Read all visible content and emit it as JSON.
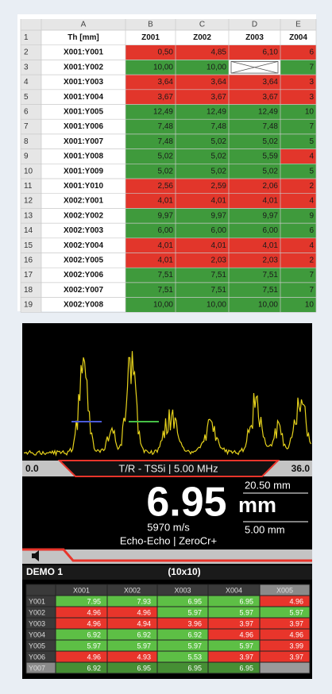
{
  "sheet": {
    "column_letters": [
      "A",
      "B",
      "C",
      "D",
      "E"
    ],
    "row_numbers": [
      "1",
      "2",
      "3",
      "4",
      "5",
      "6",
      "7",
      "8",
      "9",
      "10",
      "11",
      "12",
      "13",
      "14",
      "15",
      "16",
      "17",
      "18",
      "19"
    ],
    "header": [
      "Th [mm]",
      "Z001",
      "Z002",
      "Z003",
      "Z004"
    ],
    "palette": {
      "red": "#e2362b",
      "green": "#3f9a3c"
    },
    "rows": [
      {
        "label": "X001:Y001",
        "values": [
          "0,50",
          "4,85",
          "6,10",
          "6"
        ],
        "fill": [
          "red",
          "red",
          "red",
          "red"
        ]
      },
      {
        "label": "X001:Y002",
        "values": [
          "10,00",
          "10,00",
          null,
          "7"
        ],
        "fill": [
          "green",
          "green",
          "crossed",
          "green"
        ]
      },
      {
        "label": "X001:Y003",
        "values": [
          "3,64",
          "3,64",
          "3,64",
          "3"
        ],
        "fill": [
          "red",
          "red",
          "red",
          "red"
        ]
      },
      {
        "label": "X001:Y004",
        "values": [
          "3,67",
          "3,67",
          "3,67",
          "3"
        ],
        "fill": [
          "red",
          "red",
          "red",
          "red"
        ]
      },
      {
        "label": "X001:Y005",
        "values": [
          "12,49",
          "12,49",
          "12,49",
          "10"
        ],
        "fill": [
          "green",
          "green",
          "green",
          "green"
        ]
      },
      {
        "label": "X001:Y006",
        "values": [
          "7,48",
          "7,48",
          "7,48",
          "7"
        ],
        "fill": [
          "green",
          "green",
          "green",
          "green"
        ]
      },
      {
        "label": "X001:Y007",
        "values": [
          "7,48",
          "5,02",
          "5,02",
          "5"
        ],
        "fill": [
          "green",
          "green",
          "green",
          "green"
        ]
      },
      {
        "label": "X001:Y008",
        "values": [
          "5,02",
          "5,02",
          "5,59",
          "4"
        ],
        "fill": [
          "green",
          "green",
          "green",
          "red"
        ]
      },
      {
        "label": "X001:Y009",
        "values": [
          "5,02",
          "5,02",
          "5,02",
          "5"
        ],
        "fill": [
          "green",
          "green",
          "green",
          "green"
        ]
      },
      {
        "label": "X001:Y010",
        "values": [
          "2,56",
          "2,59",
          "2,06",
          "2"
        ],
        "fill": [
          "red",
          "red",
          "red",
          "red"
        ]
      },
      {
        "label": "X002:Y001",
        "values": [
          "4,01",
          "4,01",
          "4,01",
          "4"
        ],
        "fill": [
          "red",
          "red",
          "red",
          "red"
        ]
      },
      {
        "label": "X002:Y002",
        "values": [
          "9,97",
          "9,97",
          "9,97",
          "9"
        ],
        "fill": [
          "green",
          "green",
          "green",
          "green"
        ]
      },
      {
        "label": "X002:Y003",
        "values": [
          "6,00",
          "6,00",
          "6,00",
          "6"
        ],
        "fill": [
          "green",
          "green",
          "green",
          "green"
        ]
      },
      {
        "label": "X002:Y004",
        "values": [
          "4,01",
          "4,01",
          "4,01",
          "4"
        ],
        "fill": [
          "red",
          "red",
          "red",
          "red"
        ]
      },
      {
        "label": "X002:Y005",
        "values": [
          "4,01",
          "2,03",
          "2,03",
          "2"
        ],
        "fill": [
          "red",
          "red",
          "red",
          "red"
        ]
      },
      {
        "label": "X002:Y006",
        "values": [
          "7,51",
          "7,51",
          "7,51",
          "7"
        ],
        "fill": [
          "green",
          "green",
          "green",
          "green"
        ]
      },
      {
        "label": "X002:Y007",
        "values": [
          "7,51",
          "7,51",
          "7,51",
          "7"
        ],
        "fill": [
          "green",
          "green",
          "green",
          "green"
        ]
      },
      {
        "label": "X002:Y008",
        "values": [
          "10,00",
          "10,00",
          "10,00",
          "10"
        ],
        "fill": [
          "green",
          "green",
          "green",
          "green"
        ]
      }
    ]
  },
  "device": {
    "range_start": "0.0",
    "range_end": "36.0",
    "probe": "T/R - TS5i | 5.00 MHz",
    "reading": "6.95",
    "unit": "mm",
    "gate_a": "20.50 mm",
    "gate_b": "5.00 mm",
    "velocity": "5970 m/s",
    "mode": "Echo-Echo | ZeroCr+",
    "file": "DEMO 1",
    "grid_size": "(10x10)",
    "palette": {
      "red": "#e8352b",
      "green": "#5dbf45"
    },
    "columns": [
      "X001",
      "X002",
      "X003",
      "X004",
      "X005"
    ],
    "rows": [
      {
        "label": "Y001",
        "values": [
          "7.95",
          "7.93",
          "6.95",
          "6.95",
          "4.96"
        ],
        "fill": [
          "green",
          "green",
          "green",
          "green",
          "red"
        ]
      },
      {
        "label": "Y002",
        "values": [
          "4.96",
          "4.96",
          "5.97",
          "5.97",
          "5.97"
        ],
        "fill": [
          "red",
          "red",
          "green",
          "green",
          "green"
        ]
      },
      {
        "label": "Y003",
        "values": [
          "4.96",
          "4.94",
          "3.96",
          "3.97",
          "3.97"
        ],
        "fill": [
          "red",
          "red",
          "red",
          "red",
          "red"
        ]
      },
      {
        "label": "Y004",
        "values": [
          "6.92",
          "6.92",
          "6.92",
          "4.96",
          "4.96"
        ],
        "fill": [
          "green",
          "green",
          "green",
          "red",
          "red"
        ]
      },
      {
        "label": "Y005",
        "values": [
          "5.97",
          "5.97",
          "5.97",
          "5.97",
          "3.99"
        ],
        "fill": [
          "green",
          "green",
          "green",
          "green",
          "red"
        ]
      },
      {
        "label": "Y006",
        "values": [
          "4.96",
          "4.93",
          "5.53",
          "3.97",
          "3.97"
        ],
        "fill": [
          "red",
          "red",
          "green",
          "red",
          "red"
        ]
      },
      {
        "label": "Y007",
        "values": [
          "6.92",
          "6.95",
          "6.95",
          "6.95",
          null
        ],
        "fill": [
          "green",
          "green",
          "green",
          "green",
          "empty"
        ]
      }
    ]
  }
}
